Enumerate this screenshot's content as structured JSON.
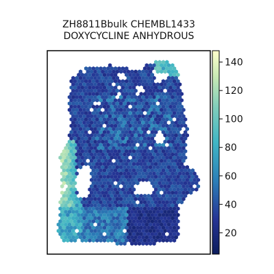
{
  "chart_data": {
    "type": "heatmap",
    "subtype": "hexbin spatial map",
    "title_lines": [
      "ZH8811Bbulk CHEMBL1433",
      "DOXYCYCLINE ANHYDROUS"
    ],
    "xlabel": "",
    "ylabel": "",
    "colorbar": {
      "colormap": "YlGnBu_r",
      "colors": [
        "#0c1d5c",
        "#253494",
        "#2c7fb8",
        "#41b6c4",
        "#7fcdbb",
        "#c7e9b4",
        "#ffffcc"
      ],
      "range": [
        5,
        148
      ],
      "ticks": [
        20,
        40,
        60,
        80,
        100,
        120,
        140
      ],
      "tick_labels": [
        "20",
        "40",
        "60",
        "80",
        "100",
        "120",
        "140"
      ]
    },
    "grid": false,
    "regions": {
      "note": "approximate value zones across the tissue (normalized tissue coordinates)",
      "low_zone_bottom_center": 15,
      "typical_value": 35,
      "high_zone_left_edge": 130
    }
  }
}
